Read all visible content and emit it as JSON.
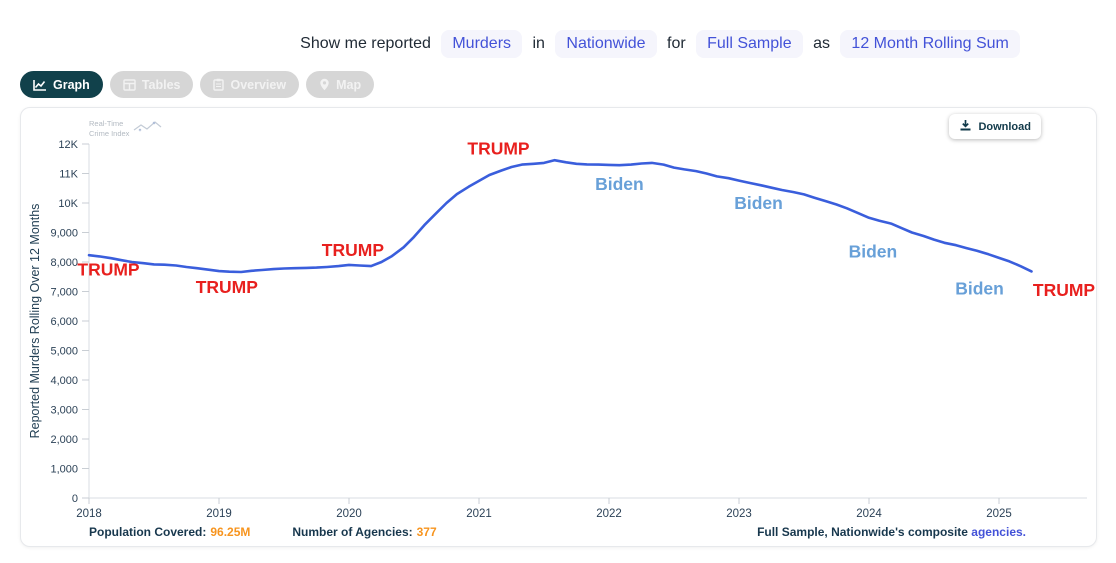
{
  "query": {
    "prefix": "Show me reported",
    "metric": "Murders",
    "word_in": "in",
    "geography": "Nationwide",
    "word_for": "for",
    "sample": "Full Sample",
    "word_as": "as",
    "display": "12 Month Rolling Sum"
  },
  "tabs": [
    {
      "label": "Graph",
      "icon": "line-chart-icon",
      "active": true
    },
    {
      "label": "Tables",
      "icon": "table-icon",
      "active": false
    },
    {
      "label": "Overview",
      "icon": "clipboard-icon",
      "active": false
    },
    {
      "label": "Map",
      "icon": "map-pin-icon",
      "active": false
    }
  ],
  "toolbar": {
    "download_label": "Download"
  },
  "watermark": {
    "line1": "Real-Time",
    "line2": "Crime Index"
  },
  "footer": {
    "population_label": "Population Covered:",
    "population_value": "96.25M",
    "agencies_label": "Number of Agencies:",
    "agencies_value": "377",
    "right_text": "Full Sample, Nationwide's composite",
    "right_link": "agencies."
  },
  "chart_data": {
    "type": "line",
    "title": "",
    "xlabel": "",
    "ylabel": "Reported Murders Rolling Over 12 Months",
    "ylim": [
      0,
      12000
    ],
    "xlim": [
      2018.0,
      2025.68
    ],
    "grid": false,
    "legend": "none",
    "colors": {
      "line": "#3a5edc",
      "trump": "#e8201e",
      "biden": "#68a0d8",
      "axis": "#d9dde3",
      "tick": "#c9ced4",
      "tick_text": "#2c4257",
      "axis_title": "#1f3d52"
    },
    "yticks": [
      {
        "v": 0,
        "label": "0"
      },
      {
        "v": 1000,
        "label": "1,000"
      },
      {
        "v": 2000,
        "label": "2,000"
      },
      {
        "v": 3000,
        "label": "3,000"
      },
      {
        "v": 4000,
        "label": "4,000"
      },
      {
        "v": 5000,
        "label": "5,000"
      },
      {
        "v": 6000,
        "label": "6,000"
      },
      {
        "v": 7000,
        "label": "7,000"
      },
      {
        "v": 8000,
        "label": "8,000"
      },
      {
        "v": 9000,
        "label": "9,000"
      },
      {
        "v": 10000,
        "label": "10K"
      },
      {
        "v": 11000,
        "label": "11K"
      },
      {
        "v": 12000,
        "label": "12K"
      }
    ],
    "xticks": [
      {
        "v": 2018,
        "label": "2018"
      },
      {
        "v": 2019,
        "label": "2019"
      },
      {
        "v": 2020,
        "label": "2020"
      },
      {
        "v": 2021,
        "label": "2021"
      },
      {
        "v": 2022,
        "label": "2022"
      },
      {
        "v": 2023,
        "label": "2023"
      },
      {
        "v": 2024,
        "label": "2024"
      },
      {
        "v": 2025,
        "label": "2025"
      }
    ],
    "annotations": [
      {
        "text": "TRUMP",
        "x": 2018.15,
        "y": 7750,
        "party": "trump"
      },
      {
        "text": "TRUMP",
        "x": 2019.06,
        "y": 7150,
        "party": "trump"
      },
      {
        "text": "TRUMP",
        "x": 2020.03,
        "y": 8400,
        "party": "trump"
      },
      {
        "text": "TRUMP",
        "x": 2021.15,
        "y": 11850,
        "party": "trump"
      },
      {
        "text": "Biden",
        "x": 2022.08,
        "y": 10650,
        "party": "biden"
      },
      {
        "text": "Biden",
        "x": 2023.15,
        "y": 10000,
        "party": "biden"
      },
      {
        "text": "Biden",
        "x": 2024.03,
        "y": 8350,
        "party": "biden"
      },
      {
        "text": "Biden",
        "x": 2024.85,
        "y": 7100,
        "party": "biden"
      },
      {
        "text": "TRUMP",
        "x": 2025.5,
        "y": 7050,
        "party": "trump"
      }
    ],
    "series": [
      {
        "name": "Reported Murders (12-month rolling sum)",
        "points": [
          [
            2018.0,
            8230
          ],
          [
            2018.08,
            8190
          ],
          [
            2018.17,
            8130
          ],
          [
            2018.25,
            8060
          ],
          [
            2018.33,
            8000
          ],
          [
            2018.42,
            7960
          ],
          [
            2018.5,
            7920
          ],
          [
            2018.58,
            7910
          ],
          [
            2018.67,
            7880
          ],
          [
            2018.75,
            7830
          ],
          [
            2018.83,
            7790
          ],
          [
            2018.92,
            7740
          ],
          [
            2019.0,
            7690
          ],
          [
            2019.08,
            7670
          ],
          [
            2019.17,
            7660
          ],
          [
            2019.25,
            7700
          ],
          [
            2019.33,
            7730
          ],
          [
            2019.42,
            7760
          ],
          [
            2019.5,
            7780
          ],
          [
            2019.58,
            7790
          ],
          [
            2019.67,
            7800
          ],
          [
            2019.75,
            7810
          ],
          [
            2019.83,
            7830
          ],
          [
            2019.92,
            7860
          ],
          [
            2020.0,
            7900
          ],
          [
            2020.08,
            7880
          ],
          [
            2020.17,
            7860
          ],
          [
            2020.25,
            8000
          ],
          [
            2020.33,
            8200
          ],
          [
            2020.42,
            8500
          ],
          [
            2020.5,
            8850
          ],
          [
            2020.58,
            9250
          ],
          [
            2020.67,
            9650
          ],
          [
            2020.75,
            10000
          ],
          [
            2020.83,
            10300
          ],
          [
            2020.92,
            10550
          ],
          [
            2021.0,
            10750
          ],
          [
            2021.08,
            10950
          ],
          [
            2021.17,
            11100
          ],
          [
            2021.25,
            11220
          ],
          [
            2021.33,
            11300
          ],
          [
            2021.42,
            11330
          ],
          [
            2021.5,
            11360
          ],
          [
            2021.58,
            11450
          ],
          [
            2021.67,
            11380
          ],
          [
            2021.75,
            11330
          ],
          [
            2021.83,
            11310
          ],
          [
            2021.92,
            11300
          ],
          [
            2022.0,
            11290
          ],
          [
            2022.08,
            11280
          ],
          [
            2022.17,
            11300
          ],
          [
            2022.25,
            11340
          ],
          [
            2022.33,
            11360
          ],
          [
            2022.42,
            11300
          ],
          [
            2022.5,
            11200
          ],
          [
            2022.58,
            11140
          ],
          [
            2022.67,
            11080
          ],
          [
            2022.75,
            11000
          ],
          [
            2022.83,
            10900
          ],
          [
            2022.92,
            10840
          ],
          [
            2023.0,
            10760
          ],
          [
            2023.08,
            10680
          ],
          [
            2023.17,
            10600
          ],
          [
            2023.25,
            10520
          ],
          [
            2023.33,
            10440
          ],
          [
            2023.42,
            10370
          ],
          [
            2023.5,
            10290
          ],
          [
            2023.58,
            10180
          ],
          [
            2023.67,
            10060
          ],
          [
            2023.75,
            9950
          ],
          [
            2023.83,
            9820
          ],
          [
            2023.92,
            9650
          ],
          [
            2024.0,
            9500
          ],
          [
            2024.08,
            9400
          ],
          [
            2024.17,
            9300
          ],
          [
            2024.25,
            9150
          ],
          [
            2024.33,
            9000
          ],
          [
            2024.42,
            8880
          ],
          [
            2024.5,
            8760
          ],
          [
            2024.58,
            8650
          ],
          [
            2024.67,
            8570
          ],
          [
            2024.75,
            8470
          ],
          [
            2024.83,
            8380
          ],
          [
            2024.92,
            8260
          ],
          [
            2025.0,
            8140
          ],
          [
            2025.08,
            8020
          ],
          [
            2025.17,
            7850
          ],
          [
            2025.25,
            7680
          ]
        ]
      }
    ]
  }
}
